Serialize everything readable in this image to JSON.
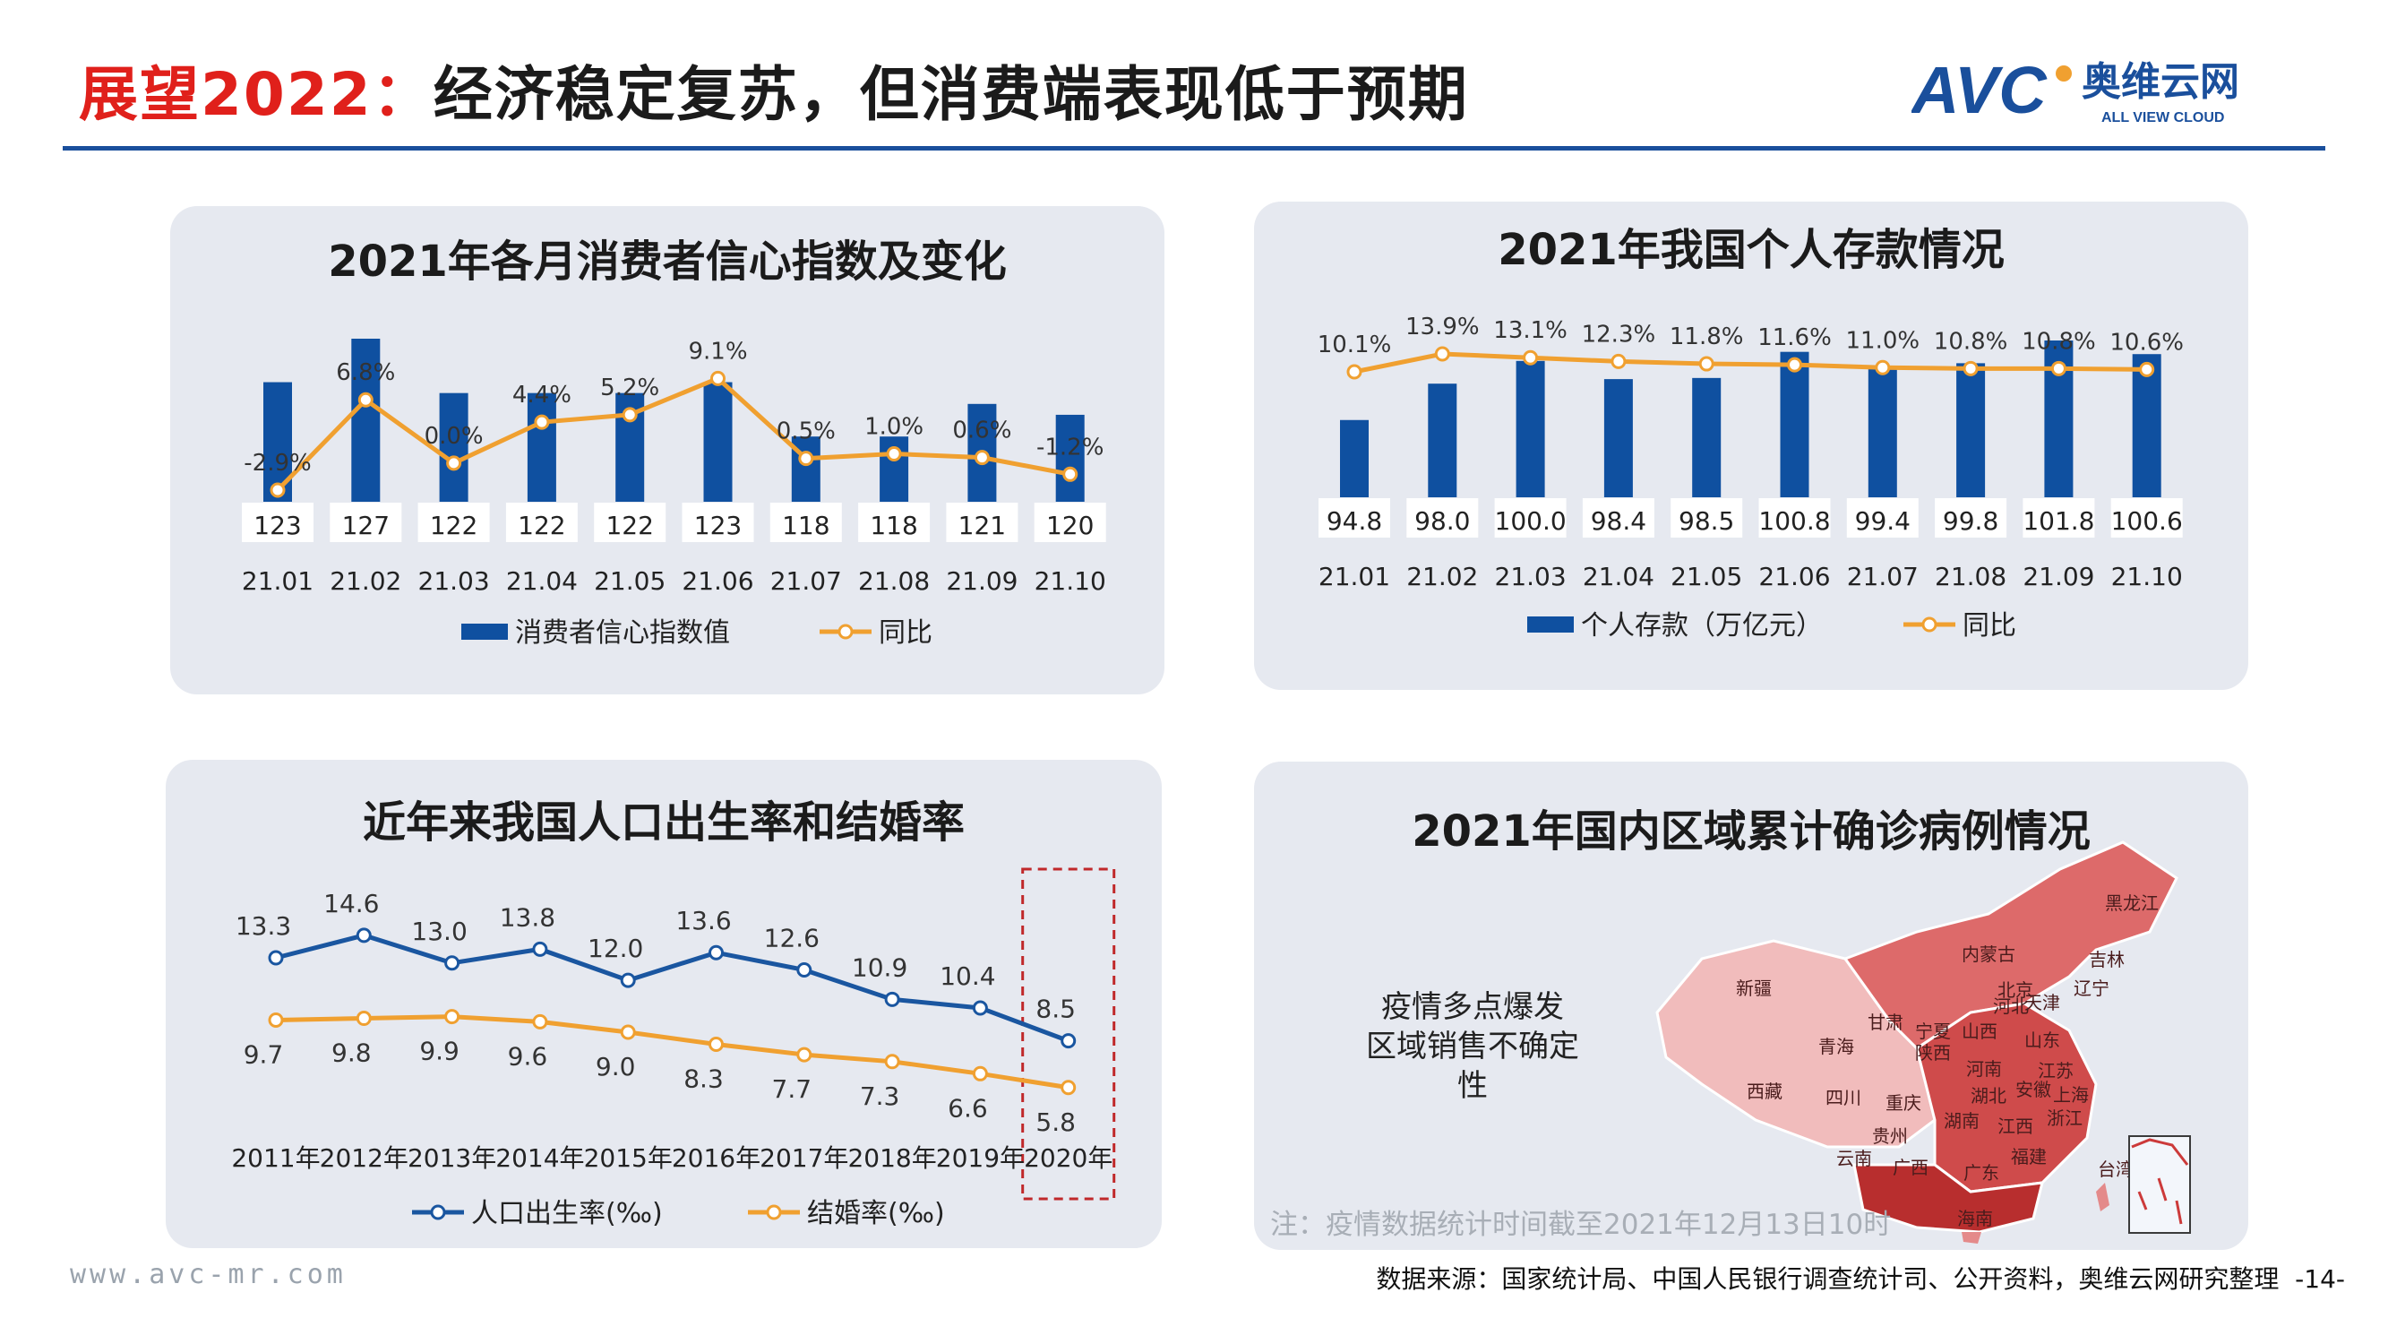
{
  "header": {
    "title_red": "展望2022：",
    "title_black": "经济稳定复苏，但消费端表现低于预期",
    "logo_mark": "AVC",
    "logo_cn": "奥维云网",
    "logo_en": "ALL VIEW CLOUD"
  },
  "colors": {
    "bar_blue": "#0f50a0",
    "line_orange": "#f0a030",
    "line_blue": "#1a56a0",
    "accent_red": "#e0201b",
    "panel_bg": "#e6e9f0"
  },
  "charts": {
    "consumer_confidence": {
      "title": "2021年各月消费者信心指数及变化",
      "legend_bar": "消费者信心指数值",
      "legend_line": "同比"
    },
    "deposits": {
      "title": "2021年我国个人存款情况",
      "legend_bar": "个人存款（万亿元）",
      "legend_line": "同比"
    },
    "birth_marriage": {
      "title": "近年来我国人口出生率和结婚率",
      "legend_birth": "人口出生率(‰)",
      "legend_marriage": "结婚率(‰)"
    },
    "covid_map": {
      "title": "2021年国内区域累计确诊病例情况",
      "text_line1": "疫情多点爆发",
      "text_line2": "区域销售不确定性",
      "note": "注：疫情数据统计时间截至2021年12月13日10时",
      "provinces": [
        "黑龙江",
        "吉林",
        "辽宁",
        "内蒙古",
        "新疆",
        "西藏",
        "青海",
        "甘肃",
        "宁夏",
        "陕西",
        "山西",
        "河北",
        "北京",
        "天津",
        "山东",
        "河南",
        "江苏",
        "安徽",
        "上海",
        "湖北",
        "四川",
        "重庆",
        "贵州",
        "湖南",
        "江西",
        "浙江",
        "福建",
        "云南",
        "广西",
        "广东",
        "台湾",
        "海南"
      ]
    }
  },
  "chart_data": [
    {
      "type": "bar",
      "title": "2021年各月消费者信心指数及变化",
      "categories": [
        "21.01",
        "21.02",
        "21.03",
        "21.04",
        "21.05",
        "21.06",
        "21.07",
        "21.08",
        "21.09",
        "21.10"
      ],
      "series": [
        {
          "name": "消费者信心指数值",
          "type": "bar",
          "values": [
            123,
            127,
            122,
            122,
            122,
            123,
            118,
            118,
            121,
            120
          ],
          "labels": [
            "123",
            "127",
            "122",
            "122",
            "122",
            "123",
            "118",
            "118",
            "121",
            "120"
          ]
        },
        {
          "name": "同比",
          "type": "line",
          "values": [
            -2.9,
            6.8,
            0.0,
            4.4,
            5.2,
            9.1,
            0.5,
            1.0,
            0.6,
            -1.2
          ],
          "labels": [
            "-2.9%",
            "6.8%",
            "0.0%",
            "4.4%",
            "5.2%",
            "9.1%",
            "0.5%",
            "1.0%",
            "0.6%",
            "-1.2%"
          ]
        }
      ]
    },
    {
      "type": "bar",
      "title": "2021年我国个人存款情况",
      "categories": [
        "21.01",
        "21.02",
        "21.03",
        "21.04",
        "21.05",
        "21.06",
        "21.07",
        "21.08",
        "21.09",
        "21.10"
      ],
      "series": [
        {
          "name": "个人存款（万亿元）",
          "type": "bar",
          "values": [
            94.8,
            98.0,
            100.0,
            98.4,
            98.5,
            100.8,
            99.4,
            99.8,
            101.8,
            100.6
          ],
          "labels": [
            "94.8",
            "98.0",
            "100.0",
            "98.4",
            "98.5",
            "100.8",
            "99.4",
            "99.8",
            "101.8",
            "100.6"
          ]
        },
        {
          "name": "同比",
          "type": "line",
          "values": [
            10.1,
            13.9,
            13.1,
            12.3,
            11.8,
            11.6,
            11.0,
            10.8,
            10.8,
            10.6
          ],
          "labels": [
            "10.1%",
            "13.9%",
            "13.1%",
            "12.3%",
            "11.8%",
            "11.6%",
            "11.0%",
            "10.8%",
            "10.8%",
            "10.6%"
          ]
        }
      ]
    },
    {
      "type": "line",
      "title": "近年来我国人口出生率和结婚率",
      "categories": [
        "2011年",
        "2012年",
        "2013年",
        "2014年",
        "2015年",
        "2016年",
        "2017年",
        "2018年",
        "2019年",
        "2020年"
      ],
      "highlight_category": "2020年",
      "series": [
        {
          "name": "人口出生率(‰)",
          "values": [
            13.3,
            14.6,
            13.0,
            13.8,
            12.0,
            13.6,
            12.6,
            10.9,
            10.4,
            8.5
          ],
          "labels": [
            "13.3",
            "14.6",
            "13.0",
            "13.8",
            "12.0",
            "13.6",
            "12.6",
            "10.9",
            "10.4",
            "8.5"
          ]
        },
        {
          "name": "结婚率(‰)",
          "values": [
            9.7,
            9.8,
            9.9,
            9.6,
            9.0,
            8.3,
            7.7,
            7.3,
            6.6,
            5.8
          ],
          "labels": [
            "9.7",
            "9.8",
            "9.9",
            "9.6",
            "9.0",
            "8.3",
            "7.7",
            "7.3",
            "6.6",
            "5.8"
          ]
        }
      ]
    }
  ],
  "footer": {
    "url": "www.avc-mr.com",
    "source": "数据来源：国家统计局、中国人民银行调查统计司、公开资料，奥维云网研究整理",
    "page": "-14-"
  }
}
